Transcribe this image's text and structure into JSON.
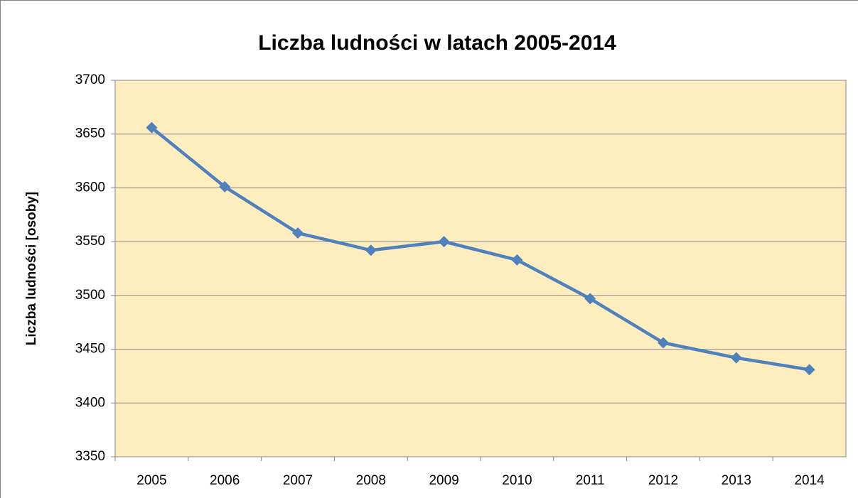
{
  "chart_data": {
    "type": "line",
    "title": "Liczba ludności w latach 2005-2014",
    "y_label": "Liczba ludności [osoby]",
    "categories": [
      "2005",
      "2006",
      "2007",
      "2008",
      "2009",
      "2010",
      "2011",
      "2012",
      "2013",
      "2014"
    ],
    "series": [
      {
        "name": "Liczba ludności",
        "color": "#4f81bd",
        "values": [
          3656,
          3601,
          3558,
          3542,
          3550,
          3533,
          3497,
          3456,
          3442,
          3431
        ]
      }
    ],
    "ylim": [
      3350,
      3700
    ],
    "yticks": [
      3350,
      3400,
      3450,
      3500,
      3550,
      3600,
      3650,
      3700
    ],
    "grid": true
  }
}
